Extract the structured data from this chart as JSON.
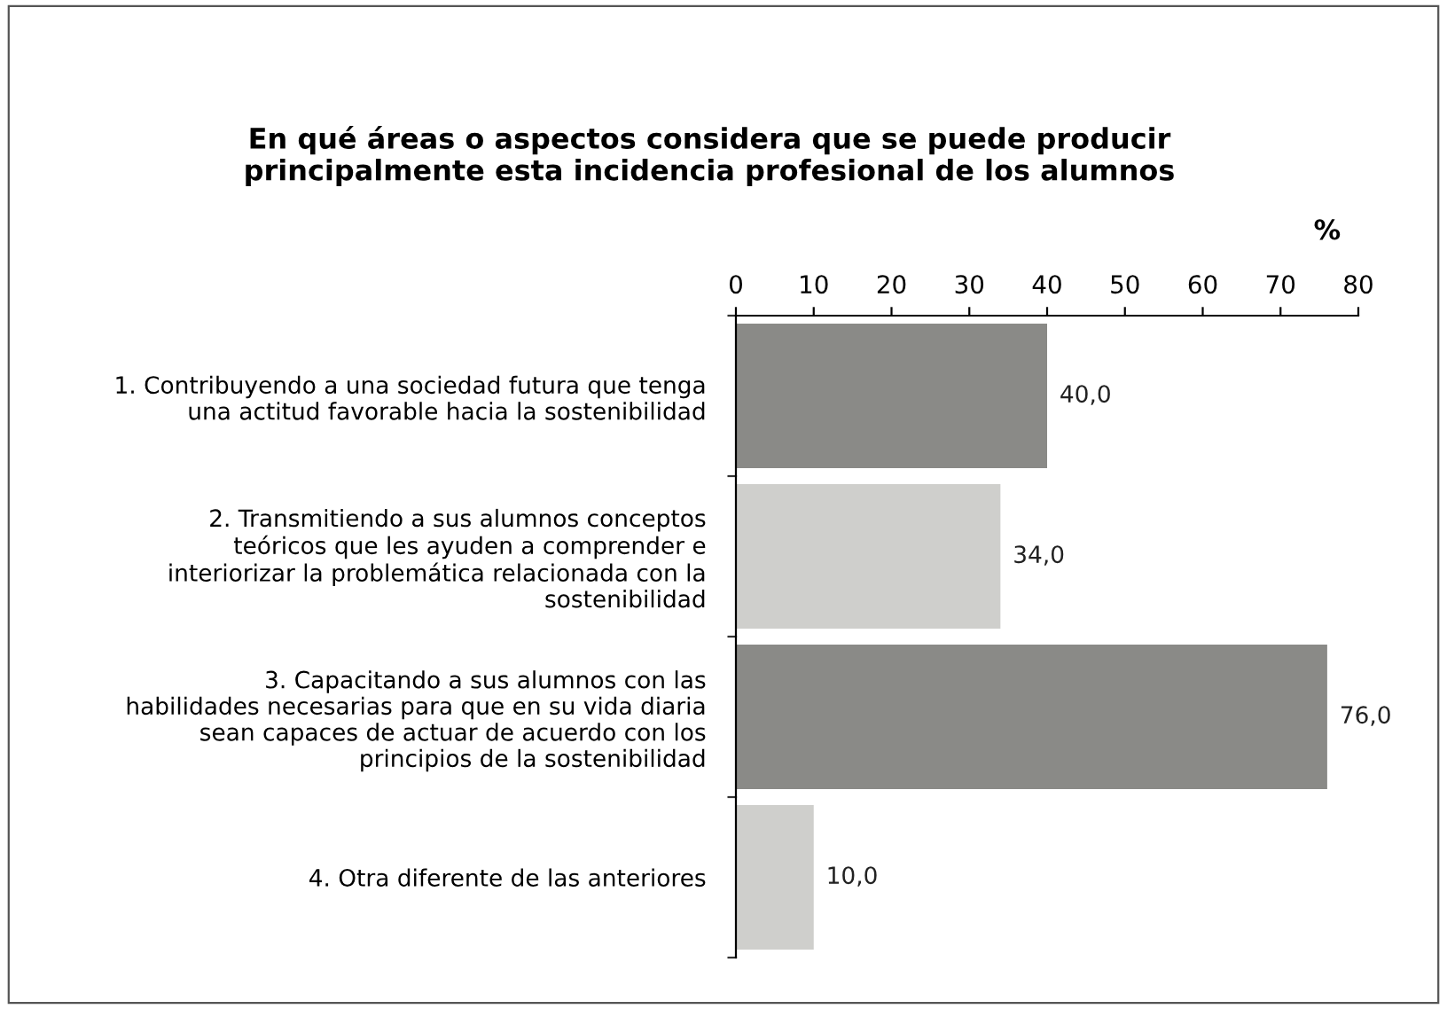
{
  "chart_data": {
    "type": "bar",
    "orientation": "horizontal",
    "title": "En qué áreas o aspectos considera que se puede producir\nprincipalmente esta incidencia profesional de los alumnos",
    "xlabel": "%",
    "categories": [
      "1. Contribuyendo a una sociedad futura que tenga\nuna actitud favorable hacia la sostenibilidad",
      "2. Transmitiendo a sus alumnos conceptos\nteóricos que les ayuden a comprender e\ninteriorizar la problemática relacionada con la\nsostenibilidad",
      "3. Capacitando a sus alumnos con las\nhabilidades necesarias para que en su vida diaria\nsean capaces de actuar de acuerdo con los\nprincipios de la sostenibilidad",
      "4. Otra diferente de las anteriores"
    ],
    "values": [
      40.0,
      34.0,
      76.0,
      10.0
    ],
    "colors": [
      "#8a8a87",
      "#cfcfcc",
      "#8a8a87",
      "#cfcfcc"
    ],
    "value_labels": [
      "40,0",
      "34,0",
      "76,0",
      "10,0"
    ],
    "xlim": [
      0,
      80
    ],
    "xticks": [
      0,
      10,
      20,
      30,
      40,
      50,
      60,
      70,
      80
    ],
    "grid": false,
    "legend": false
  }
}
